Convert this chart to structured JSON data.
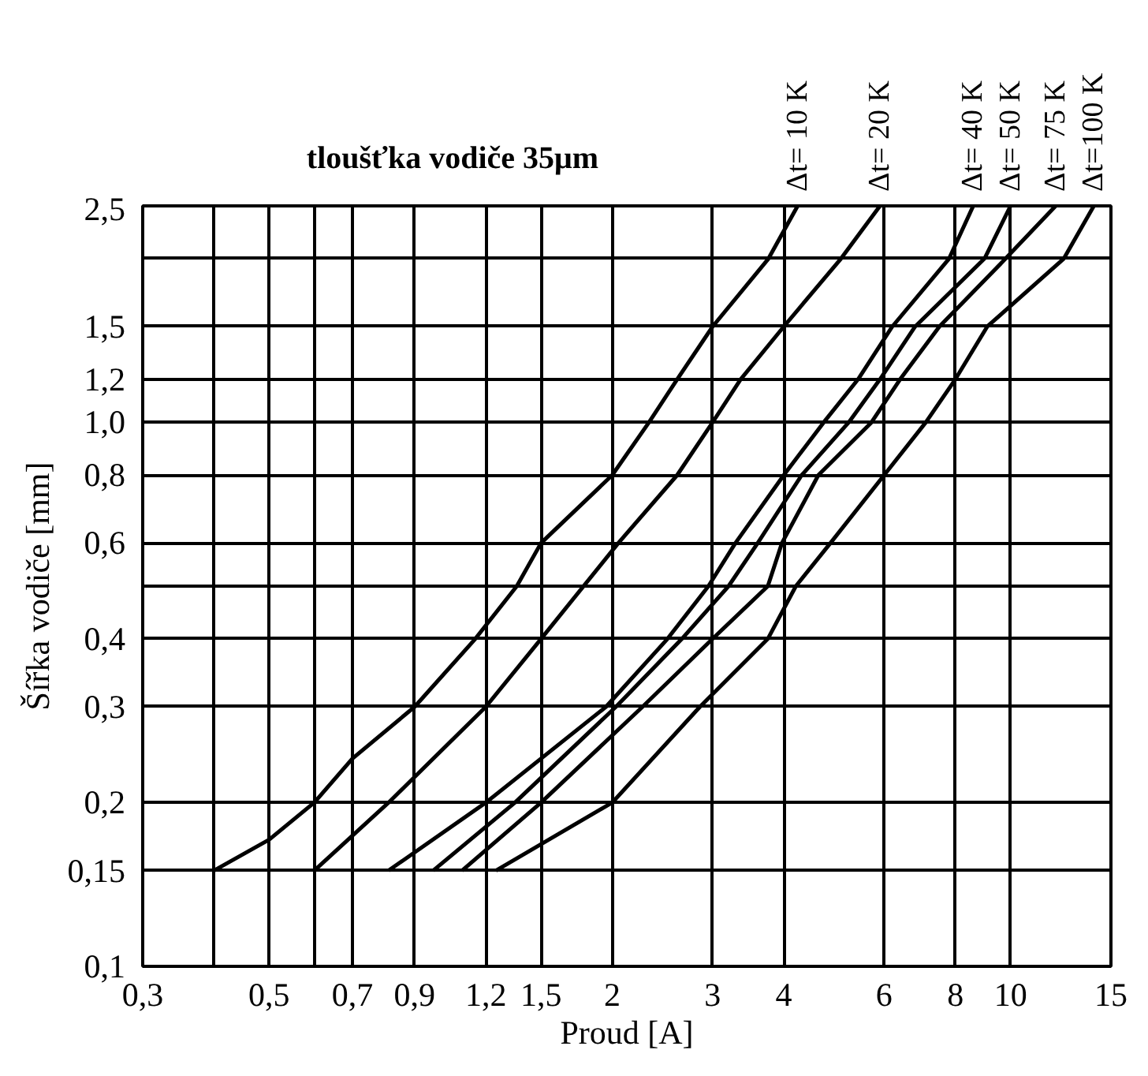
{
  "chart_data": {
    "type": "line",
    "title": "tloušťka vodiče 35μm",
    "xlabel": "Proud [A]",
    "ylabel": "Šířka vodiče [mm]",
    "log": "xy",
    "grid": true,
    "marker": "none",
    "line_style": "solid",
    "xlim": [
      0.3,
      15
    ],
    "ylim": [
      0.1,
      2.5
    ],
    "xticks": [
      {
        "value": 0.3,
        "label": "0,3"
      },
      {
        "value": 0.4,
        "label": null
      },
      {
        "value": 0.5,
        "label": "0,5"
      },
      {
        "value": 0.6,
        "label": null
      },
      {
        "value": 0.7,
        "label": "0,7"
      },
      {
        "value": 0.9,
        "label": "0,9"
      },
      {
        "value": 1.2,
        "label": "1,2"
      },
      {
        "value": 1.5,
        "label": "1,5"
      },
      2,
      3,
      4,
      6,
      8,
      10,
      15
    ],
    "yticks": [
      {
        "value": 0.1,
        "label": "0,1"
      },
      {
        "value": 0.15,
        "label": "0,15"
      },
      {
        "value": 0.2,
        "label": "0,2"
      },
      {
        "value": 0.3,
        "label": "0,3"
      },
      {
        "value": 0.4,
        "label": "0,4"
      },
      {
        "value": 0.5,
        "label": null
      },
      {
        "value": 0.6,
        "label": "0,6"
      },
      {
        "value": 0.8,
        "label": "0,8"
      },
      {
        "value": 1.0,
        "label": "1,0"
      },
      {
        "value": 1.2,
        "label": "1,2"
      },
      {
        "value": 1.5,
        "label": "1,5"
      },
      {
        "value": 2.0,
        "label": null
      },
      {
        "value": 2.5,
        "label": "2,5"
      }
    ],
    "series": [
      {
        "name": "Δt= 10 K",
        "color": "#000000",
        "x": [
          0.4,
          0.5,
          0.6,
          0.7,
          0.9,
          1.15,
          1.36,
          1.5,
          2.0,
          2.32,
          2.6,
          3.0,
          3.76,
          4.23
        ],
        "values": [
          0.15,
          0.171,
          0.2,
          0.241,
          0.3,
          0.4,
          0.5,
          0.6,
          0.8,
          1.0,
          1.2,
          1.5,
          2.0,
          2.5
        ]
      },
      {
        "name": "Δt= 20 K",
        "color": "#000000",
        "x": [
          0.6,
          0.81,
          1.2,
          1.5,
          2.05,
          2.6,
          3.0,
          3.36,
          4.0,
          5.04,
          5.9
        ],
        "values": [
          0.15,
          0.2,
          0.3,
          0.4,
          0.6,
          0.8,
          1.0,
          1.2,
          1.5,
          2.0,
          2.5
        ]
      },
      {
        "name": "Δt= 40 K",
        "color": "#000000",
        "x": [
          0.81,
          1.2,
          1.95,
          2.5,
          2.95,
          3.29,
          4.0,
          4.7,
          5.4,
          6.2,
          7.8,
          8.6
        ],
        "values": [
          0.15,
          0.2,
          0.3,
          0.4,
          0.5,
          0.6,
          0.8,
          1.0,
          1.2,
          1.5,
          2.0,
          2.5
        ]
      },
      {
        "name": "Δt= 50 K",
        "color": "#000000",
        "x": [
          0.97,
          1.35,
          2.03,
          2.65,
          3.2,
          3.6,
          4.3,
          5.2,
          5.9,
          6.8,
          9.0,
          10.0
        ],
        "values": [
          0.15,
          0.2,
          0.3,
          0.4,
          0.5,
          0.6,
          0.8,
          1.0,
          1.2,
          1.5,
          2.0,
          2.5
        ]
      },
      {
        "name": "Δt= 75 K",
        "color": "#000000",
        "x": [
          1.09,
          1.5,
          2.26,
          3.0,
          3.75,
          3.97,
          4.6,
          5.7,
          6.4,
          7.5,
          9.8,
          12.0
        ],
        "values": [
          0.15,
          0.2,
          0.3,
          0.4,
          0.5,
          0.6,
          0.8,
          1.0,
          1.2,
          1.5,
          2.0,
          2.5
        ]
      },
      {
        "name": "Δt=100 K",
        "color": "#000000",
        "x": [
          1.25,
          2.0,
          2.85,
          3.75,
          4.2,
          4.83,
          6.0,
          7.1,
          8.0,
          9.1,
          12.4,
          14.0
        ],
        "values": [
          0.15,
          0.2,
          0.3,
          0.4,
          0.5,
          0.6,
          0.8,
          1.0,
          1.2,
          1.5,
          2.0,
          2.5
        ]
      }
    ]
  }
}
